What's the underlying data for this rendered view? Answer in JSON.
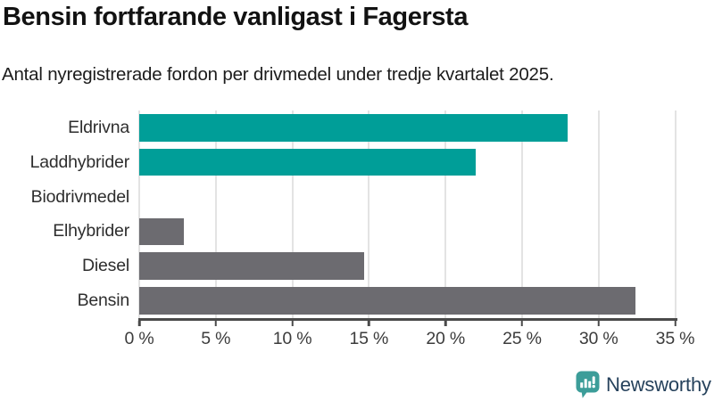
{
  "chart_data": {
    "type": "bar",
    "orientation": "horizontal",
    "title": "Bensin fortfarande vanligast i Fagersta",
    "subtitle": "Antal nyregistrerade fordon per drivmedel under tredje kvartalet 2025.",
    "categories": [
      "Eldrivna",
      "Laddhybrider",
      "Biodrivmedel",
      "Elhybrider",
      "Diesel",
      "Bensin"
    ],
    "values": [
      28,
      22,
      0,
      2.9,
      14.7,
      32.4
    ],
    "unit": "%",
    "xlabel": "",
    "ylabel": "",
    "xlim": [
      0,
      35
    ],
    "x_ticks": [
      0,
      5,
      10,
      15,
      20,
      25,
      30,
      35
    ],
    "x_tick_labels": [
      "0 %",
      "5 %",
      "10 %",
      "15 %",
      "20 %",
      "25 %",
      "30 %",
      "35 %"
    ],
    "bar_colors": [
      "#009E98",
      "#009E98",
      "#6C6B70",
      "#6C6B70",
      "#6C6B70",
      "#6C6B70"
    ],
    "grid": true,
    "legend_position": "none"
  },
  "footer": {
    "brand": "Newsworthy"
  },
  "colors": {
    "teal": "#009E98",
    "gray": "#6C6B70",
    "gridline": "#E3E3E3",
    "axis": "#4A4A4A",
    "logo_teal": "#3C9D99",
    "brand_text": "#26425C"
  }
}
